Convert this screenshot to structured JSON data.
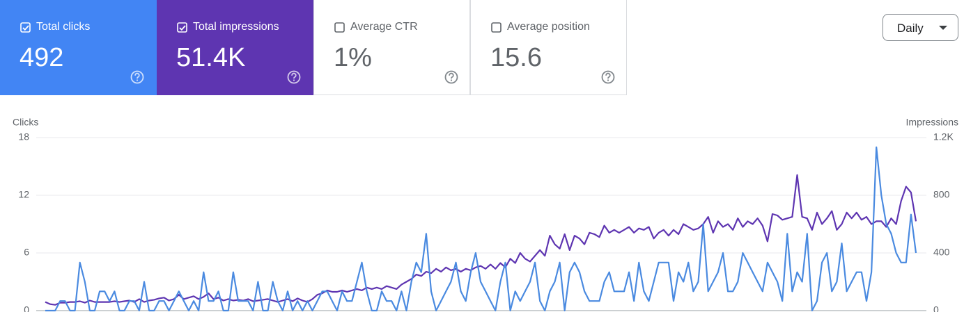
{
  "metrics": [
    {
      "label": "Total clicks",
      "value": "492",
      "checked": true,
      "color": "#4285f4"
    },
    {
      "label": "Total impressions",
      "value": "51.4K",
      "checked": true,
      "color": "#5e35b1"
    },
    {
      "label": "Average CTR",
      "value": "1%",
      "checked": false,
      "color": "#ffffff"
    },
    {
      "label": "Average position",
      "value": "15.6",
      "checked": false,
      "color": "#ffffff"
    }
  ],
  "range_selector": "Daily",
  "chart_data": {
    "type": "line",
    "series": [
      {
        "name": "Clicks",
        "color": "#4a8ae0",
        "values": [
          0,
          0,
          0,
          1,
          1,
          0,
          0,
          5,
          3,
          0,
          0,
          2,
          2,
          1,
          2,
          0,
          0,
          1,
          1,
          0,
          3,
          0,
          0,
          1,
          1,
          0,
          1,
          2,
          1,
          0,
          1,
          0,
          4,
          1,
          1,
          2,
          0,
          0,
          4,
          1,
          1,
          1,
          0,
          3,
          0,
          0,
          3,
          1,
          0,
          2,
          0,
          1,
          0,
          1,
          0,
          1,
          2,
          2,
          1,
          0,
          2,
          1,
          1,
          3,
          5,
          2,
          0,
          0,
          2,
          1,
          1,
          0,
          2,
          0,
          3,
          5,
          4,
          8,
          2,
          0,
          1,
          2,
          3,
          5,
          2,
          1,
          4,
          6,
          3,
          2,
          1,
          0,
          3,
          5,
          0,
          2,
          1,
          2,
          3,
          5,
          1,
          0,
          2,
          3,
          5,
          0,
          4,
          5,
          4,
          2,
          1,
          1,
          1,
          3,
          4,
          2,
          2,
          2,
          4,
          1,
          5,
          2,
          1,
          3,
          5,
          5,
          5,
          1,
          4,
          3,
          5,
          2,
          3,
          9,
          2,
          3,
          4,
          6,
          2,
          2,
          3,
          6,
          5,
          4,
          3,
          2,
          5,
          4,
          3,
          1,
          8,
          2,
          4,
          3,
          8,
          0,
          1,
          5,
          6,
          2,
          3,
          7,
          2,
          3,
          4,
          4,
          1,
          4,
          17,
          12,
          9,
          8,
          6,
          5,
          5,
          10,
          6
        ]
      },
      {
        "name": "Impressions",
        "color": "#5e35b1",
        "axis": "y2",
        "values": [
          60,
          45,
          40,
          55,
          55,
          60,
          60,
          65,
          55,
          70,
          60,
          60,
          60,
          60,
          65,
          60,
          65,
          70,
          60,
          80,
          60,
          70,
          75,
          85,
          90,
          70,
          80,
          110,
          80,
          90,
          100,
          80,
          95,
          120,
          80,
          90,
          70,
          80,
          70,
          75,
          70,
          80,
          65,
          70,
          75,
          80,
          70,
          60,
          70,
          80,
          65,
          85,
          70,
          60,
          80,
          110,
          120,
          140,
          130,
          130,
          140,
          130,
          140,
          150,
          140,
          160,
          150,
          160,
          150,
          170,
          160,
          150,
          180,
          200,
          220,
          250,
          240,
          270,
          260,
          290,
          270,
          300,
          280,
          290,
          270,
          290,
          280,
          300,
          310,
          290,
          320,
          290,
          330,
          300,
          360,
          330,
          400,
          360,
          340,
          380,
          420,
          380,
          520,
          460,
          430,
          530,
          420,
          520,
          500,
          460,
          540,
          530,
          510,
          590,
          540,
          560,
          540,
          560,
          580,
          540,
          570,
          560,
          580,
          500,
          540,
          560,
          520,
          560,
          530,
          600,
          580,
          560,
          570,
          600,
          650,
          540,
          620,
          580,
          600,
          560,
          640,
          580,
          620,
          600,
          640,
          590,
          480,
          670,
          660,
          630,
          640,
          650,
          940,
          650,
          640,
          560,
          680,
          600,
          640,
          690,
          560,
          600,
          680,
          640,
          680,
          630,
          650,
          600,
          620,
          620,
          580,
          640,
          600,
          760,
          860,
          820,
          620
        ]
      }
    ],
    "ylim": [
      0,
      18
    ],
    "yticks": [
      0,
      6,
      12,
      18
    ],
    "y2lim": [
      0,
      1200
    ],
    "y2ticks": [
      0,
      400,
      800,
      {
        "value": 1200,
        "label": "1.2K"
      }
    ],
    "grid": true
  }
}
